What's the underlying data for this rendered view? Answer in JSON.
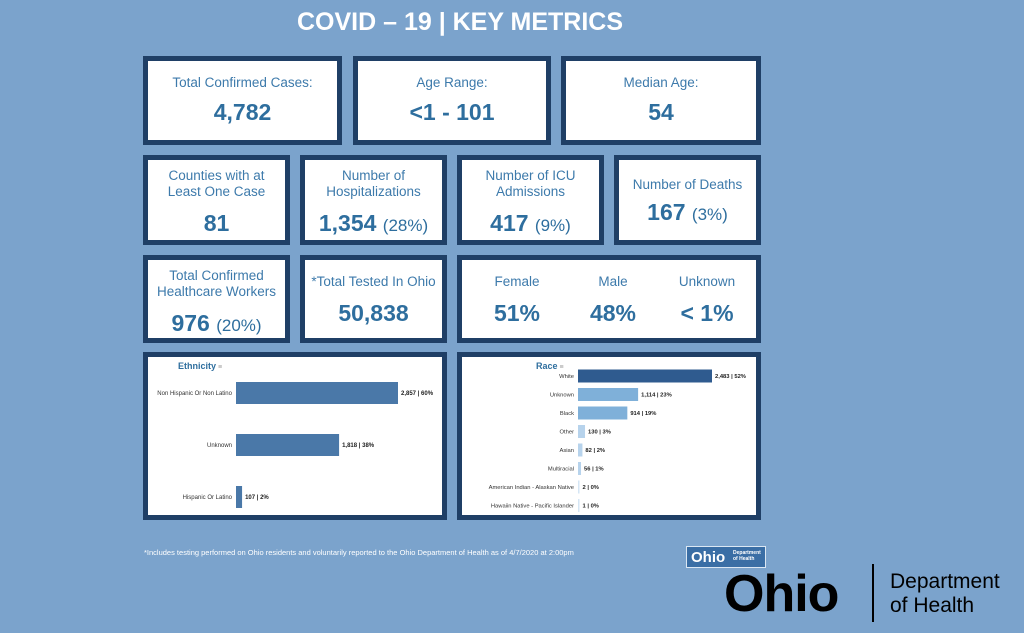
{
  "title": "COVID – 19 | KEY METRICS",
  "metrics": {
    "cases": {
      "label": "Total Confirmed Cases:",
      "value": "4,782"
    },
    "age_range": {
      "label": "Age Range:",
      "value": "<1 - 101"
    },
    "median_age": {
      "label": "Median Age:",
      "value": "54"
    },
    "counties": {
      "label": "Counties with at Least One Case",
      "value": "81"
    },
    "hospitalizations": {
      "label": "Number of Hospitalizations",
      "value": "1,354",
      "pct": "(28%)"
    },
    "icu": {
      "label": "Number of ICU Admissions",
      "value": "417",
      "pct": "(9%)"
    },
    "deaths": {
      "label": "Number of Deaths",
      "value": "167",
      "pct": "(3%)"
    },
    "healthcare": {
      "label": "Total Confirmed Healthcare Workers",
      "value": "976",
      "pct": "(20%)"
    },
    "tested": {
      "label": "*Total Tested In Ohio",
      "value": "50,838"
    },
    "sex": {
      "female": {
        "label": "Female",
        "value": "51%"
      },
      "male": {
        "label": "Male",
        "value": "48%"
      },
      "unknown": {
        "label": "Unknown",
        "value": "< 1%"
      }
    }
  },
  "chart_data": [
    {
      "type": "bar",
      "title": "Ethnicity",
      "orientation": "horizontal",
      "categories": [
        "Non Hispanic Or Non Latino",
        "Unknown",
        "Hispanic Or Latino"
      ],
      "values": [
        2857,
        1818,
        107
      ],
      "data_labels": [
        "2,857 | 60%",
        "1,818 | 38%",
        "107 | 2%"
      ],
      "colors": [
        "#4a78a8",
        "#4a78a8",
        "#4a78a8"
      ]
    },
    {
      "type": "bar",
      "title": "Race",
      "orientation": "horizontal",
      "categories": [
        "White",
        "Unknown",
        "Black",
        "Other",
        "Asian",
        "Multiracial",
        "American Indian - Alaskan Native",
        "Hawaiin Native - Pacific Islander"
      ],
      "values": [
        2483,
        1114,
        914,
        130,
        82,
        56,
        2,
        1
      ],
      "data_labels": [
        "2,483 | 52%",
        "1,114 | 23%",
        "914 | 19%",
        "130 | 3%",
        "82 | 2%",
        "56 | 1%",
        "2 | 0%",
        "1 | 0%"
      ],
      "colors": [
        "#2f5b8f",
        "#7fb0d9",
        "#7fb0d9",
        "#b7d3ec",
        "#b7d3ec",
        "#b7d3ec",
        "#d5e6f5",
        "#d5e6f5"
      ]
    }
  ],
  "footnote": "*Includes testing performed on Ohio residents and voluntarily reported to the Ohio Department of Health as of 4/7/2020 at 2:00pm",
  "logos": {
    "small_ohio": "Ohio",
    "small_dept": "Department of Health",
    "big_ohio": "Ohio",
    "big_dept_line1": "Department",
    "big_dept_line2": "of Health"
  }
}
